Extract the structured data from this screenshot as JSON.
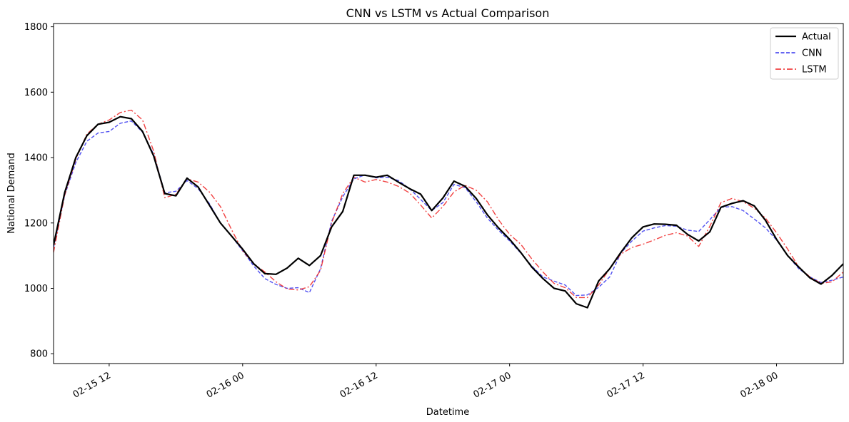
{
  "chart_data": {
    "type": "line",
    "title": "CNN vs LSTM vs Actual Comparison",
    "xlabel": "Datetime",
    "ylabel": "National Demand",
    "ylim": [
      770,
      1810
    ],
    "xlim_hours": [
      0,
      71
    ],
    "y_ticks": [
      800,
      1000,
      1200,
      1400,
      1600,
      1800
    ],
    "x_ticks": [
      {
        "hours": 5,
        "label": "02-15 12"
      },
      {
        "hours": 17,
        "label": "02-16 00"
      },
      {
        "hours": 29,
        "label": "02-16 12"
      },
      {
        "hours": 41,
        "label": "02-17 00"
      },
      {
        "hours": 53,
        "label": "02-17 12"
      },
      {
        "hours": 65,
        "label": "02-18 00"
      }
    ],
    "x_start": "02-15 07:00",
    "x_step_hours": 1,
    "grid": false,
    "legend_position": "top-right",
    "series": [
      {
        "name": "Actual",
        "color": "#000000",
        "style": "solid",
        "values": [
          1132,
          1293,
          1400,
          1467,
          1502,
          1508,
          1525,
          1519,
          1480,
          1405,
          1290,
          1283,
          1337,
          1310,
          1255,
          1200,
          1160,
          1120,
          1075,
          1045,
          1043,
          1062,
          1092,
          1070,
          1100,
          1188,
          1235,
          1346,
          1346,
          1340,
          1346,
          1325,
          1305,
          1288,
          1238,
          1276,
          1328,
          1312,
          1275,
          1225,
          1185,
          1150,
          1110,
          1065,
          1030,
          1000,
          992,
          953,
          941,
          1022,
          1060,
          1110,
          1155,
          1188,
          1197,
          1196,
          1193,
          1165,
          1145,
          1173,
          1248,
          1260,
          1268,
          1252,
          1208,
          1150,
          1100,
          1065,
          1032,
          1013,
          1040,
          1075
        ]
      },
      {
        "name": "CNN",
        "color": "#3333ee",
        "style": "dashed",
        "values": [
          1125,
          1285,
          1385,
          1450,
          1475,
          1480,
          1505,
          1512,
          1478,
          1410,
          1292,
          1297,
          1330,
          1305,
          1260,
          1200,
          1160,
          1115,
          1068,
          1030,
          1012,
          1000,
          1002,
          987,
          1060,
          1205,
          1280,
          1335,
          1347,
          1338,
          1340,
          1330,
          1305,
          1272,
          1238,
          1262,
          1318,
          1308,
          1265,
          1215,
          1178,
          1145,
          1108,
          1068,
          1035,
          1022,
          1010,
          978,
          980,
          1003,
          1035,
          1108,
          1145,
          1175,
          1185,
          1192,
          1190,
          1178,
          1174,
          1210,
          1248,
          1250,
          1238,
          1212,
          1185,
          1148,
          1100,
          1060,
          1035,
          1018,
          1025,
          1035
        ]
      },
      {
        "name": "LSTM",
        "color": "#ee2222",
        "style": "dashdot",
        "values": [
          1110,
          1285,
          1395,
          1472,
          1502,
          1515,
          1538,
          1545,
          1515,
          1420,
          1277,
          1288,
          1335,
          1325,
          1295,
          1250,
          1180,
          1115,
          1075,
          1050,
          1020,
          998,
          995,
          1005,
          1055,
          1200,
          1290,
          1340,
          1325,
          1333,
          1325,
          1312,
          1292,
          1255,
          1215,
          1250,
          1295,
          1315,
          1300,
          1265,
          1210,
          1165,
          1135,
          1090,
          1050,
          1015,
          1002,
          972,
          972,
          1010,
          1060,
          1105,
          1125,
          1135,
          1148,
          1162,
          1170,
          1160,
          1128,
          1190,
          1262,
          1275,
          1265,
          1245,
          1215,
          1170,
          1120,
          1065,
          1035,
          1015,
          1020,
          1050
        ]
      }
    ]
  }
}
